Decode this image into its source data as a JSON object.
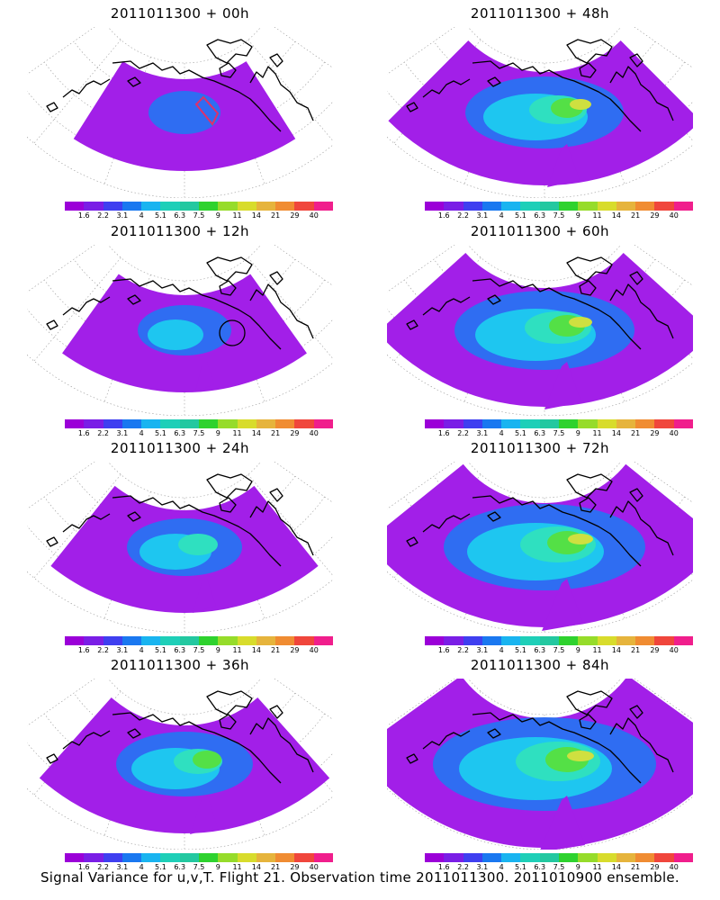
{
  "panels": [
    {
      "title": "2011011300 + 00h",
      "level": 0
    },
    {
      "title": "2011011300 + 48h",
      "level": 4
    },
    {
      "title": "2011011300 + 12h",
      "level": 1
    },
    {
      "title": "2011011300 + 60h",
      "level": 5
    },
    {
      "title": "2011011300 + 24h",
      "level": 2
    },
    {
      "title": "2011011300 + 72h",
      "level": 6
    },
    {
      "title": "2011011300 + 36h",
      "level": 3
    },
    {
      "title": "2011011300 + 84h",
      "level": 7
    }
  ],
  "colorbar": {
    "labels": [
      "1.6",
      "2.2",
      "3.1",
      "4",
      "5.1",
      "6.3",
      "7.5",
      "9",
      "11",
      "14",
      "21",
      "29",
      "40"
    ],
    "colors": [
      "#9b00d8",
      "#7a1ee6",
      "#3f3ff0",
      "#1a78f0",
      "#19b4f0",
      "#1ecfb8",
      "#23c8a0",
      "#2ed22e",
      "#96dc2a",
      "#d8dc2c",
      "#e6b43c",
      "#f08c32",
      "#f0463c",
      "#f01e8c"
    ]
  },
  "palette": {
    "violet": "#a21fe8",
    "blue": "#2f6df2",
    "cyan": "#1ec6f0",
    "teal": "#2fe0c0",
    "green": "#54e046",
    "yellow": "#cfe040",
    "coast": "#000000",
    "grid": "#9a9a9a",
    "box": "#e0306a"
  },
  "caption": "Signal Variance for u,v,T. Flight 21. Observation time 2011011300. 2011010900 ensemble."
}
